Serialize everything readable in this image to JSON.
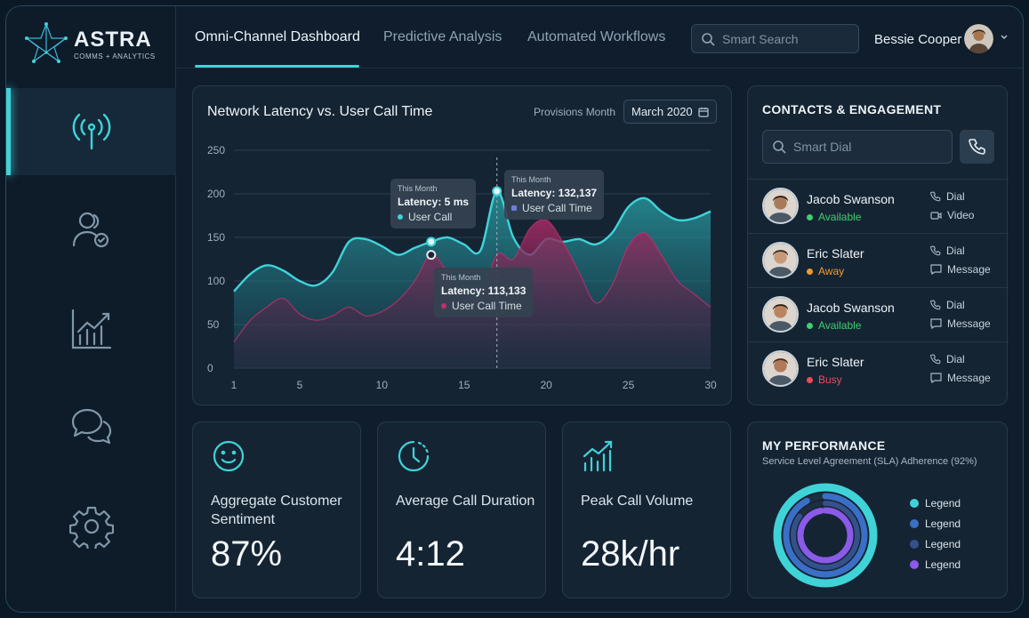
{
  "brand": {
    "name": "ASTRA",
    "tagline": "COMMS + ANALYTICS"
  },
  "sidebar": {
    "items": [
      {
        "icon": "broadcast-icon",
        "active": true
      },
      {
        "icon": "user-check-icon",
        "active": false
      },
      {
        "icon": "analytics-chart-icon",
        "active": false
      },
      {
        "icon": "chat-bubbles-icon",
        "active": false
      },
      {
        "icon": "gear-icon",
        "active": false
      }
    ]
  },
  "header": {
    "tabs": [
      {
        "label": "Omni-Channel Dashboard",
        "active": true
      },
      {
        "label": "Predictive Analysis",
        "active": false
      },
      {
        "label": "Automated Workflows",
        "active": false
      }
    ],
    "search_placeholder": "Smart Search",
    "user_name": "Bessie Cooper"
  },
  "chart_panel": {
    "title": "Network Latency vs. User Call Time",
    "provisions_label": "Provisions Month",
    "month_value": "March 2020",
    "tooltips": [
      {
        "small": "This Month",
        "main": "Latency: 5 ms",
        "series": "User Call"
      },
      {
        "small": "This Month",
        "main": "Latency: 132,137",
        "series": "User Call Time"
      },
      {
        "small": "This Month",
        "main": "Latency: 113,133",
        "series": "User Call Time"
      }
    ]
  },
  "chart_data": {
    "type": "area",
    "title": "Network Latency vs. User Call Time",
    "xlabel": "",
    "ylabel": "",
    "x": [
      1,
      2,
      3,
      4,
      5,
      6,
      7,
      8,
      9,
      10,
      11,
      12,
      13,
      14,
      15,
      16,
      17,
      18,
      19,
      20,
      21,
      22,
      23,
      24,
      25,
      26,
      27,
      28,
      29,
      30
    ],
    "xticks": [
      1,
      5,
      10,
      15,
      20,
      25,
      30
    ],
    "yticks": [
      0,
      50,
      100,
      150,
      200,
      250
    ],
    "ylim": [
      0,
      250
    ],
    "xlim": [
      1,
      30
    ],
    "series": [
      {
        "color": "#3fd3d8",
        "values": [
          88,
          108,
          118,
          112,
          100,
          95,
          110,
          145,
          148,
          140,
          130,
          138,
          145,
          150,
          142,
          135,
          203,
          150,
          130,
          148,
          145,
          148,
          142,
          155,
          185,
          195,
          180,
          170,
          172,
          180
        ]
      },
      {
        "color": "#c0306e",
        "values": [
          30,
          55,
          70,
          80,
          62,
          55,
          60,
          70,
          60,
          65,
          78,
          100,
          130,
          110,
          85,
          80,
          130,
          125,
          160,
          170,
          145,
          110,
          75,
          95,
          140,
          155,
          130,
          100,
          85,
          70
        ]
      }
    ],
    "grid": true,
    "cursor_x": 17
  },
  "contacts": {
    "title": "CONTACTS & ENGAGEMENT",
    "dial_placeholder": "Smart Dial",
    "items": [
      {
        "name": "Jacob Swanson",
        "status": "Available",
        "status_color": "#3ecf6e",
        "action1": "Dial",
        "action2": "Video",
        "action2_icon": "video-icon"
      },
      {
        "name": "Eric Slater",
        "status": "Away",
        "status_color": "#f29a2e",
        "action1": "Dial",
        "action2": "Message",
        "action2_icon": "message-icon"
      },
      {
        "name": "Jacob Swanson",
        "status": "Available",
        "status_color": "#3ecf6e",
        "action1": "Dial",
        "action2": "Message",
        "action2_icon": "message-icon"
      },
      {
        "name": "Eric Slater",
        "status": "Busy",
        "status_color": "#ee4a5a",
        "action1": "Dial",
        "action2": "Message",
        "action2_icon": "message-icon"
      }
    ]
  },
  "stats": [
    {
      "icon": "smile-icon",
      "label": "Aggregate Customer Sentiment",
      "value": "87%"
    },
    {
      "icon": "clock-icon",
      "label": "Average Call Duration",
      "value": "4:12"
    },
    {
      "icon": "growth-chart-icon",
      "label": "Peak Call Volume",
      "value": "28k/hr"
    }
  ],
  "performance": {
    "title": "MY PERFORMANCE",
    "subtitle": "Service Level Agreement (SLA) Adherence (92%)",
    "adherence_percent": 92,
    "legend": [
      {
        "label": "Legend",
        "color": "#3fd3d8"
      },
      {
        "label": "Legend",
        "color": "#3b6fc7"
      },
      {
        "label": "Legend",
        "color": "#34518a"
      },
      {
        "label": "Legend",
        "color": "#8a5ae8"
      }
    ]
  }
}
